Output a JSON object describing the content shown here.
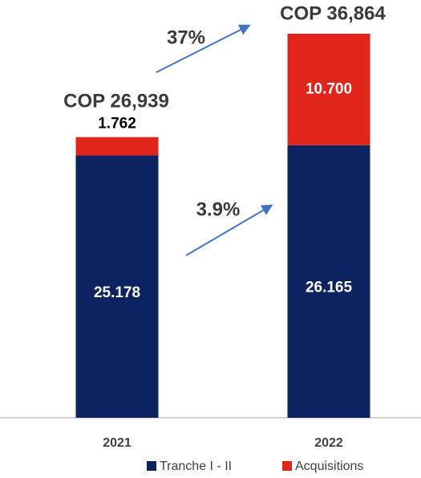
{
  "chart_data": {
    "type": "stacked_bar",
    "categories": [
      "2021",
      "2022"
    ],
    "series": [
      {
        "name": "Tranche I - II",
        "color": "#0d2360",
        "values": [
          25.178,
          26.165
        ],
        "value_labels": [
          "25.178",
          "26.165"
        ]
      },
      {
        "name": "Acquisitions",
        "color": "#e0261c",
        "values": [
          1.762,
          10.7
        ],
        "value_labels": [
          "1.762",
          "10.700"
        ]
      }
    ],
    "annotations": [
      "COP 26,939",
      "COP 36,864",
      "37%",
      "3.9%"
    ],
    "legend": "bottom"
  }
}
